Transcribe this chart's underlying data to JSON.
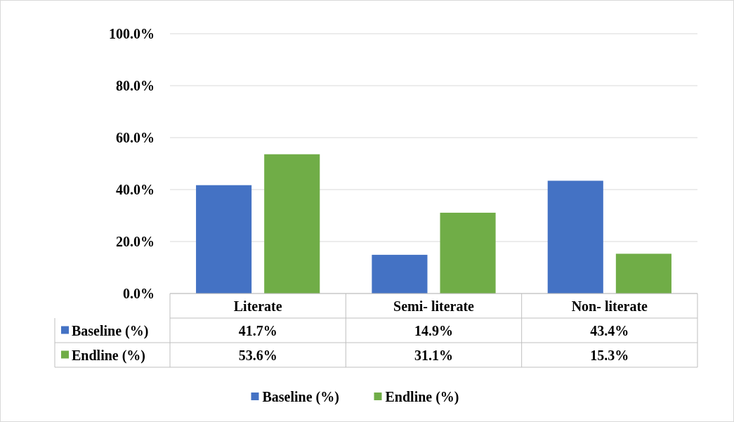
{
  "chart_data": {
    "type": "bar",
    "categories": [
      "Literate",
      "Semi- literate",
      "Non- literate"
    ],
    "series": [
      {
        "name": "Baseline (%)",
        "color": "#4472c4",
        "values": [
          41.7,
          14.9,
          43.4
        ],
        "value_labels": [
          "41.7%",
          "14.9%",
          "43.4%"
        ]
      },
      {
        "name": "Endline (%)",
        "color": "#70ad47",
        "values": [
          53.6,
          31.1,
          15.3
        ],
        "value_labels": [
          "53.6%",
          "31.1%",
          "15.3%"
        ]
      }
    ],
    "ylim": [
      0,
      100
    ],
    "yticks": [
      {
        "value": 0,
        "label": "0.0%"
      },
      {
        "value": 20,
        "label": "20.0%"
      },
      {
        "value": 40,
        "label": "40.0%"
      },
      {
        "value": 60,
        "label": "60.0%"
      },
      {
        "value": 80,
        "label": "80.0%"
      },
      {
        "value": 100,
        "label": "100.0%"
      }
    ],
    "grid": "y",
    "legend": "bottom"
  }
}
